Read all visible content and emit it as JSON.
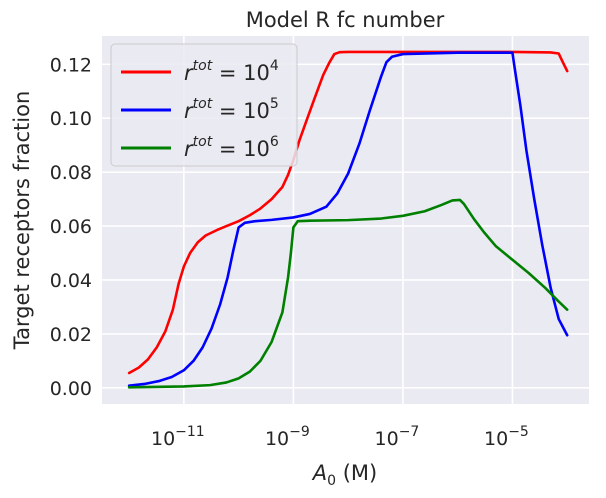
{
  "chart_data": {
    "type": "line",
    "title": "Model R fc number",
    "xlabel_main": "A",
    "xlabel_sub": "0",
    "xlabel_unit": " (M)",
    "ylabel": "Target receptors fraction",
    "xscale": "log",
    "xlim": [
      3.2e-13,
      0.00025
    ],
    "ylim": [
      -0.006,
      0.1305
    ],
    "grid": true,
    "legend_position": "top-left",
    "yticks": [
      0.0,
      0.02,
      0.04,
      0.06,
      0.08,
      0.1,
      0.12
    ],
    "ytick_labels": [
      "0.00",
      "0.02",
      "0.04",
      "0.06",
      "0.08",
      "0.10",
      "0.12"
    ],
    "xticks": [
      1e-11,
      1e-09,
      1e-07,
      1e-05
    ],
    "xtick_base": "10",
    "xtick_exponents": [
      "−11",
      "−9",
      "−7",
      "−5"
    ],
    "series": [
      {
        "name_base": "r",
        "name_sup": "tot",
        "name_mid": " = 10",
        "name_exp": "4",
        "color": "#ff0000",
        "points": [
          [
            1e-12,
            0.0055
          ],
          [
            1.5e-12,
            0.0075
          ],
          [
            2.2e-12,
            0.0105
          ],
          [
            3.2e-12,
            0.015
          ],
          [
            4.6e-12,
            0.021
          ],
          [
            6.3e-12,
            0.029
          ],
          [
            8e-12,
            0.0385
          ],
          [
            1e-11,
            0.045
          ],
          [
            1.3e-11,
            0.05
          ],
          [
            1.8e-11,
            0.054
          ],
          [
            2.5e-11,
            0.0565
          ],
          [
            4e-11,
            0.0585
          ],
          [
            6e-11,
            0.06
          ],
          [
            1e-10,
            0.0618
          ],
          [
            1.6e-10,
            0.064
          ],
          [
            2.5e-10,
            0.0665
          ],
          [
            4e-10,
            0.07
          ],
          [
            6.3e-10,
            0.0745
          ],
          [
            8e-10,
            0.079
          ],
          [
            1e-09,
            0.0845
          ],
          [
            1.3e-09,
            0.092
          ],
          [
            1.8e-09,
            0.1
          ],
          [
            2.5e-09,
            0.108
          ],
          [
            3.5e-09,
            0.116
          ],
          [
            4.5e-09,
            0.1205
          ],
          [
            5.6e-09,
            0.1238
          ],
          [
            7e-09,
            0.1245
          ],
          [
            1e-08,
            0.1246
          ],
          [
            1e-07,
            0.1246
          ],
          [
            1e-06,
            0.1246
          ],
          [
            1e-05,
            0.1246
          ],
          [
            5e-05,
            0.1244
          ],
          [
            7e-05,
            0.124
          ],
          [
            8e-05,
            0.1215
          ],
          [
            0.0001,
            0.1175
          ]
        ]
      },
      {
        "name_base": "r",
        "name_sup": "tot",
        "name_mid": " = 10",
        "name_exp": "5",
        "color": "#0000ff",
        "points": [
          [
            1e-12,
            0.0008
          ],
          [
            2e-12,
            0.0015
          ],
          [
            3.5e-12,
            0.0025
          ],
          [
            6e-12,
            0.004
          ],
          [
            1e-11,
            0.0065
          ],
          [
            1.5e-11,
            0.01
          ],
          [
            2.2e-11,
            0.015
          ],
          [
            3.2e-11,
            0.022
          ],
          [
            4.6e-11,
            0.031
          ],
          [
            6.3e-11,
            0.041
          ],
          [
            8e-11,
            0.051
          ],
          [
            1e-10,
            0.0595
          ],
          [
            1.3e-10,
            0.0612
          ],
          [
            2e-10,
            0.0618
          ],
          [
            4e-10,
            0.0623
          ],
          [
            1e-09,
            0.0632
          ],
          [
            2e-09,
            0.0645
          ],
          [
            4e-09,
            0.0672
          ],
          [
            6.3e-09,
            0.072
          ],
          [
            1e-08,
            0.0795
          ],
          [
            1.6e-08,
            0.0905
          ],
          [
            2.5e-08,
            0.103
          ],
          [
            4e-08,
            0.1155
          ],
          [
            5e-08,
            0.1208
          ],
          [
            6.3e-08,
            0.1228
          ],
          [
            1e-07,
            0.1238
          ],
          [
            1e-06,
            0.1243
          ],
          [
            1e-05,
            0.1243
          ],
          [
            1.1e-05,
            0.1185
          ],
          [
            1.4e-05,
            0.1045
          ],
          [
            1.8e-05,
            0.088
          ],
          [
            2.5e-05,
            0.07
          ],
          [
            3.5e-05,
            0.053
          ],
          [
            5e-05,
            0.037
          ],
          [
            7e-05,
            0.0255
          ],
          [
            0.0001,
            0.0195
          ]
        ]
      },
      {
        "name_base": "r",
        "name_sup": "tot",
        "name_mid": " = 10",
        "name_exp": "6",
        "color": "#008000",
        "points": [
          [
            1e-12,
            0.0002
          ],
          [
            1e-11,
            0.0005
          ],
          [
            3e-11,
            0.001
          ],
          [
            6e-11,
            0.002
          ],
          [
            1e-10,
            0.0035
          ],
          [
            1.6e-10,
            0.006
          ],
          [
            2.5e-10,
            0.01
          ],
          [
            4e-10,
            0.017
          ],
          [
            6.3e-10,
            0.028
          ],
          [
            8e-10,
            0.041
          ],
          [
            9e-10,
            0.05
          ],
          [
            1e-09,
            0.0595
          ],
          [
            1.2e-09,
            0.0618
          ],
          [
            2e-09,
            0.062
          ],
          [
            1e-08,
            0.0622
          ],
          [
            4e-08,
            0.0628
          ],
          [
            1e-07,
            0.0638
          ],
          [
            2.5e-07,
            0.0655
          ],
          [
            5e-07,
            0.0678
          ],
          [
            8e-07,
            0.0695
          ],
          [
            1.1e-06,
            0.0697
          ],
          [
            1.3e-06,
            0.0682
          ],
          [
            2e-06,
            0.0625
          ],
          [
            3e-06,
            0.0578
          ],
          [
            5e-06,
            0.0525
          ],
          [
            1e-05,
            0.0475
          ],
          [
            2e-05,
            0.0425
          ],
          [
            4e-05,
            0.037
          ],
          [
            7e-05,
            0.032
          ],
          [
            0.0001,
            0.029
          ]
        ]
      }
    ]
  }
}
